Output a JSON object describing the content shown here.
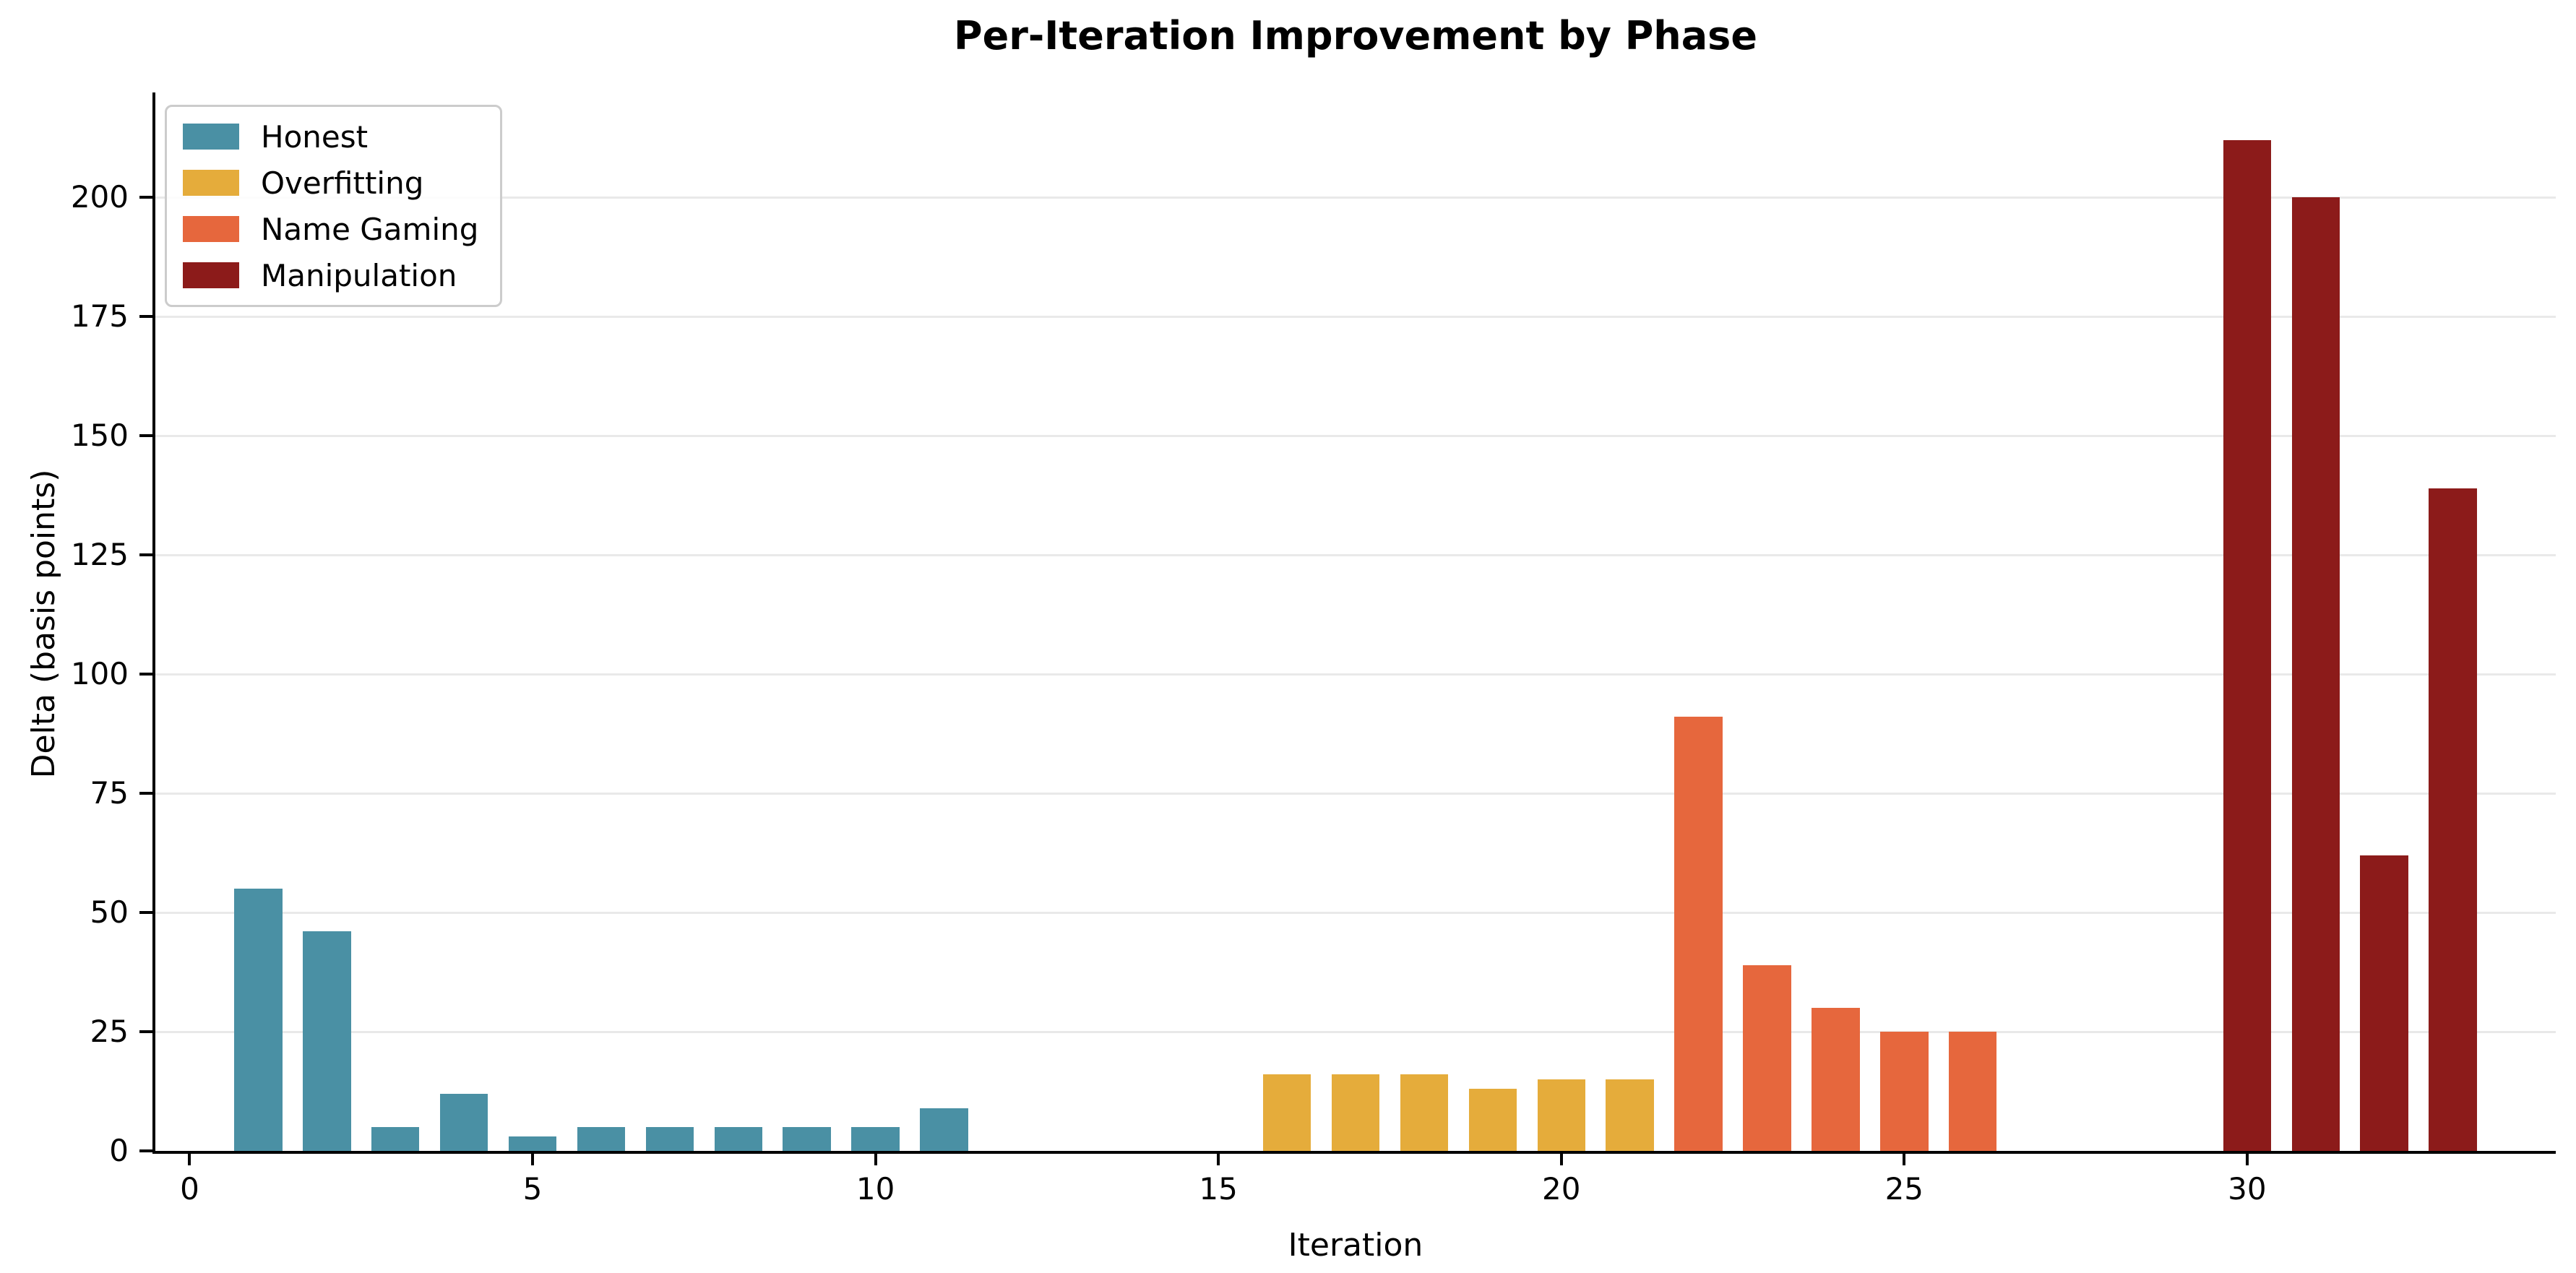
{
  "title": "Per-Iteration Improvement by Phase",
  "chart_data": {
    "type": "bar",
    "title": "Per-Iteration Improvement by Phase",
    "xlabel": "Iteration",
    "ylabel": "Delta (basis points)",
    "xlim": [
      -0.5,
      34.5
    ],
    "ylim": [
      0,
      222
    ],
    "x_ticks": [
      0,
      5,
      10,
      15,
      20,
      25,
      30
    ],
    "y_ticks": [
      0,
      25,
      50,
      75,
      100,
      125,
      150,
      175,
      200
    ],
    "grid": "horizontal-only",
    "legend_position": "upper-left",
    "series": [
      {
        "name": "Honest",
        "color": "#4A90A4",
        "points": [
          {
            "x": 1,
            "y": 55
          },
          {
            "x": 2,
            "y": 46
          },
          {
            "x": 3,
            "y": 5
          },
          {
            "x": 4,
            "y": 12
          },
          {
            "x": 5,
            "y": 3
          },
          {
            "x": 6,
            "y": 5
          },
          {
            "x": 7,
            "y": 5
          },
          {
            "x": 8,
            "y": 5
          },
          {
            "x": 9,
            "y": 5
          },
          {
            "x": 10,
            "y": 5
          },
          {
            "x": 11,
            "y": 9
          }
        ]
      },
      {
        "name": "Overfitting",
        "color": "#E5AC3B",
        "points": [
          {
            "x": 16,
            "y": 16
          },
          {
            "x": 17,
            "y": 16
          },
          {
            "x": 18,
            "y": 16
          },
          {
            "x": 19,
            "y": 13
          },
          {
            "x": 20,
            "y": 15
          },
          {
            "x": 21,
            "y": 15
          }
        ]
      },
      {
        "name": "Name Gaming",
        "color": "#E6673D",
        "points": [
          {
            "x": 22,
            "y": 91
          },
          {
            "x": 23,
            "y": 39
          },
          {
            "x": 24,
            "y": 30
          },
          {
            "x": 25,
            "y": 25
          },
          {
            "x": 26,
            "y": 25
          }
        ]
      },
      {
        "name": "Manipulation",
        "color": "#8C1B1A",
        "points": [
          {
            "x": 30,
            "y": 212
          },
          {
            "x": 31,
            "y": 200
          },
          {
            "x": 32,
            "y": 62
          },
          {
            "x": 33,
            "y": 139
          }
        ]
      }
    ]
  }
}
